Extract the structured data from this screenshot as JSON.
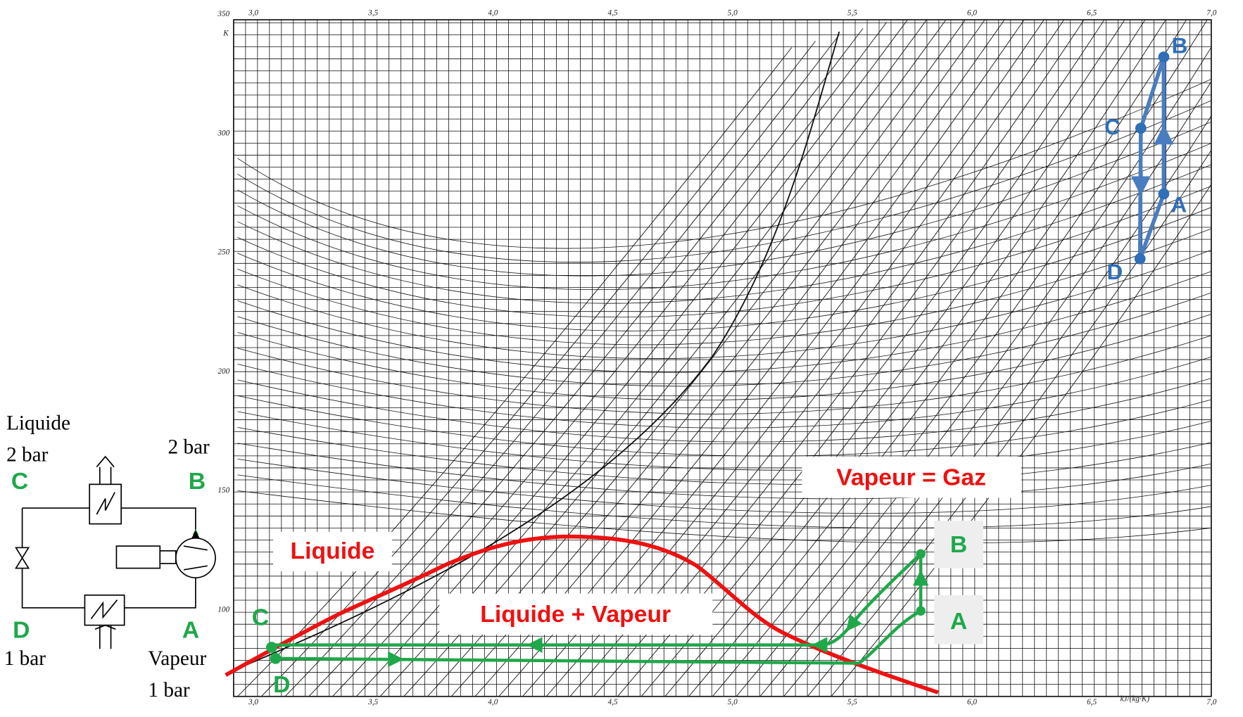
{
  "schematic": {
    "liquid": "Liquide",
    "high_pressure_left": "2 bar",
    "high_pressure_right": "2 bar",
    "point_c": "C",
    "point_b": "B",
    "point_d": "D",
    "point_a": "A",
    "low_pressure_left": "1 bar",
    "vapour": "Vapeur",
    "low_pressure_right": "1 bar"
  },
  "diagram": {
    "x_ticks": [
      "3,0",
      "3,5",
      "4,0",
      "4,5",
      "5,0",
      "5,5",
      "6,0",
      "6,5",
      "7,0"
    ],
    "y_ticks": [
      "100",
      "150",
      "200",
      "250",
      "300",
      "350"
    ],
    "x_unit": "kJ/(kg·K)",
    "y_unit": "K",
    "regions": {
      "liquid": "Liquide",
      "mixture": "Liquide + Vapeur",
      "gas": "Vapeur = Gaz"
    },
    "green_cycle": {
      "b": "B",
      "a": "A",
      "c": "C",
      "d": "D"
    },
    "blue_cycle": {
      "b": "B",
      "c": "C",
      "a": "A",
      "d": "D"
    }
  }
}
